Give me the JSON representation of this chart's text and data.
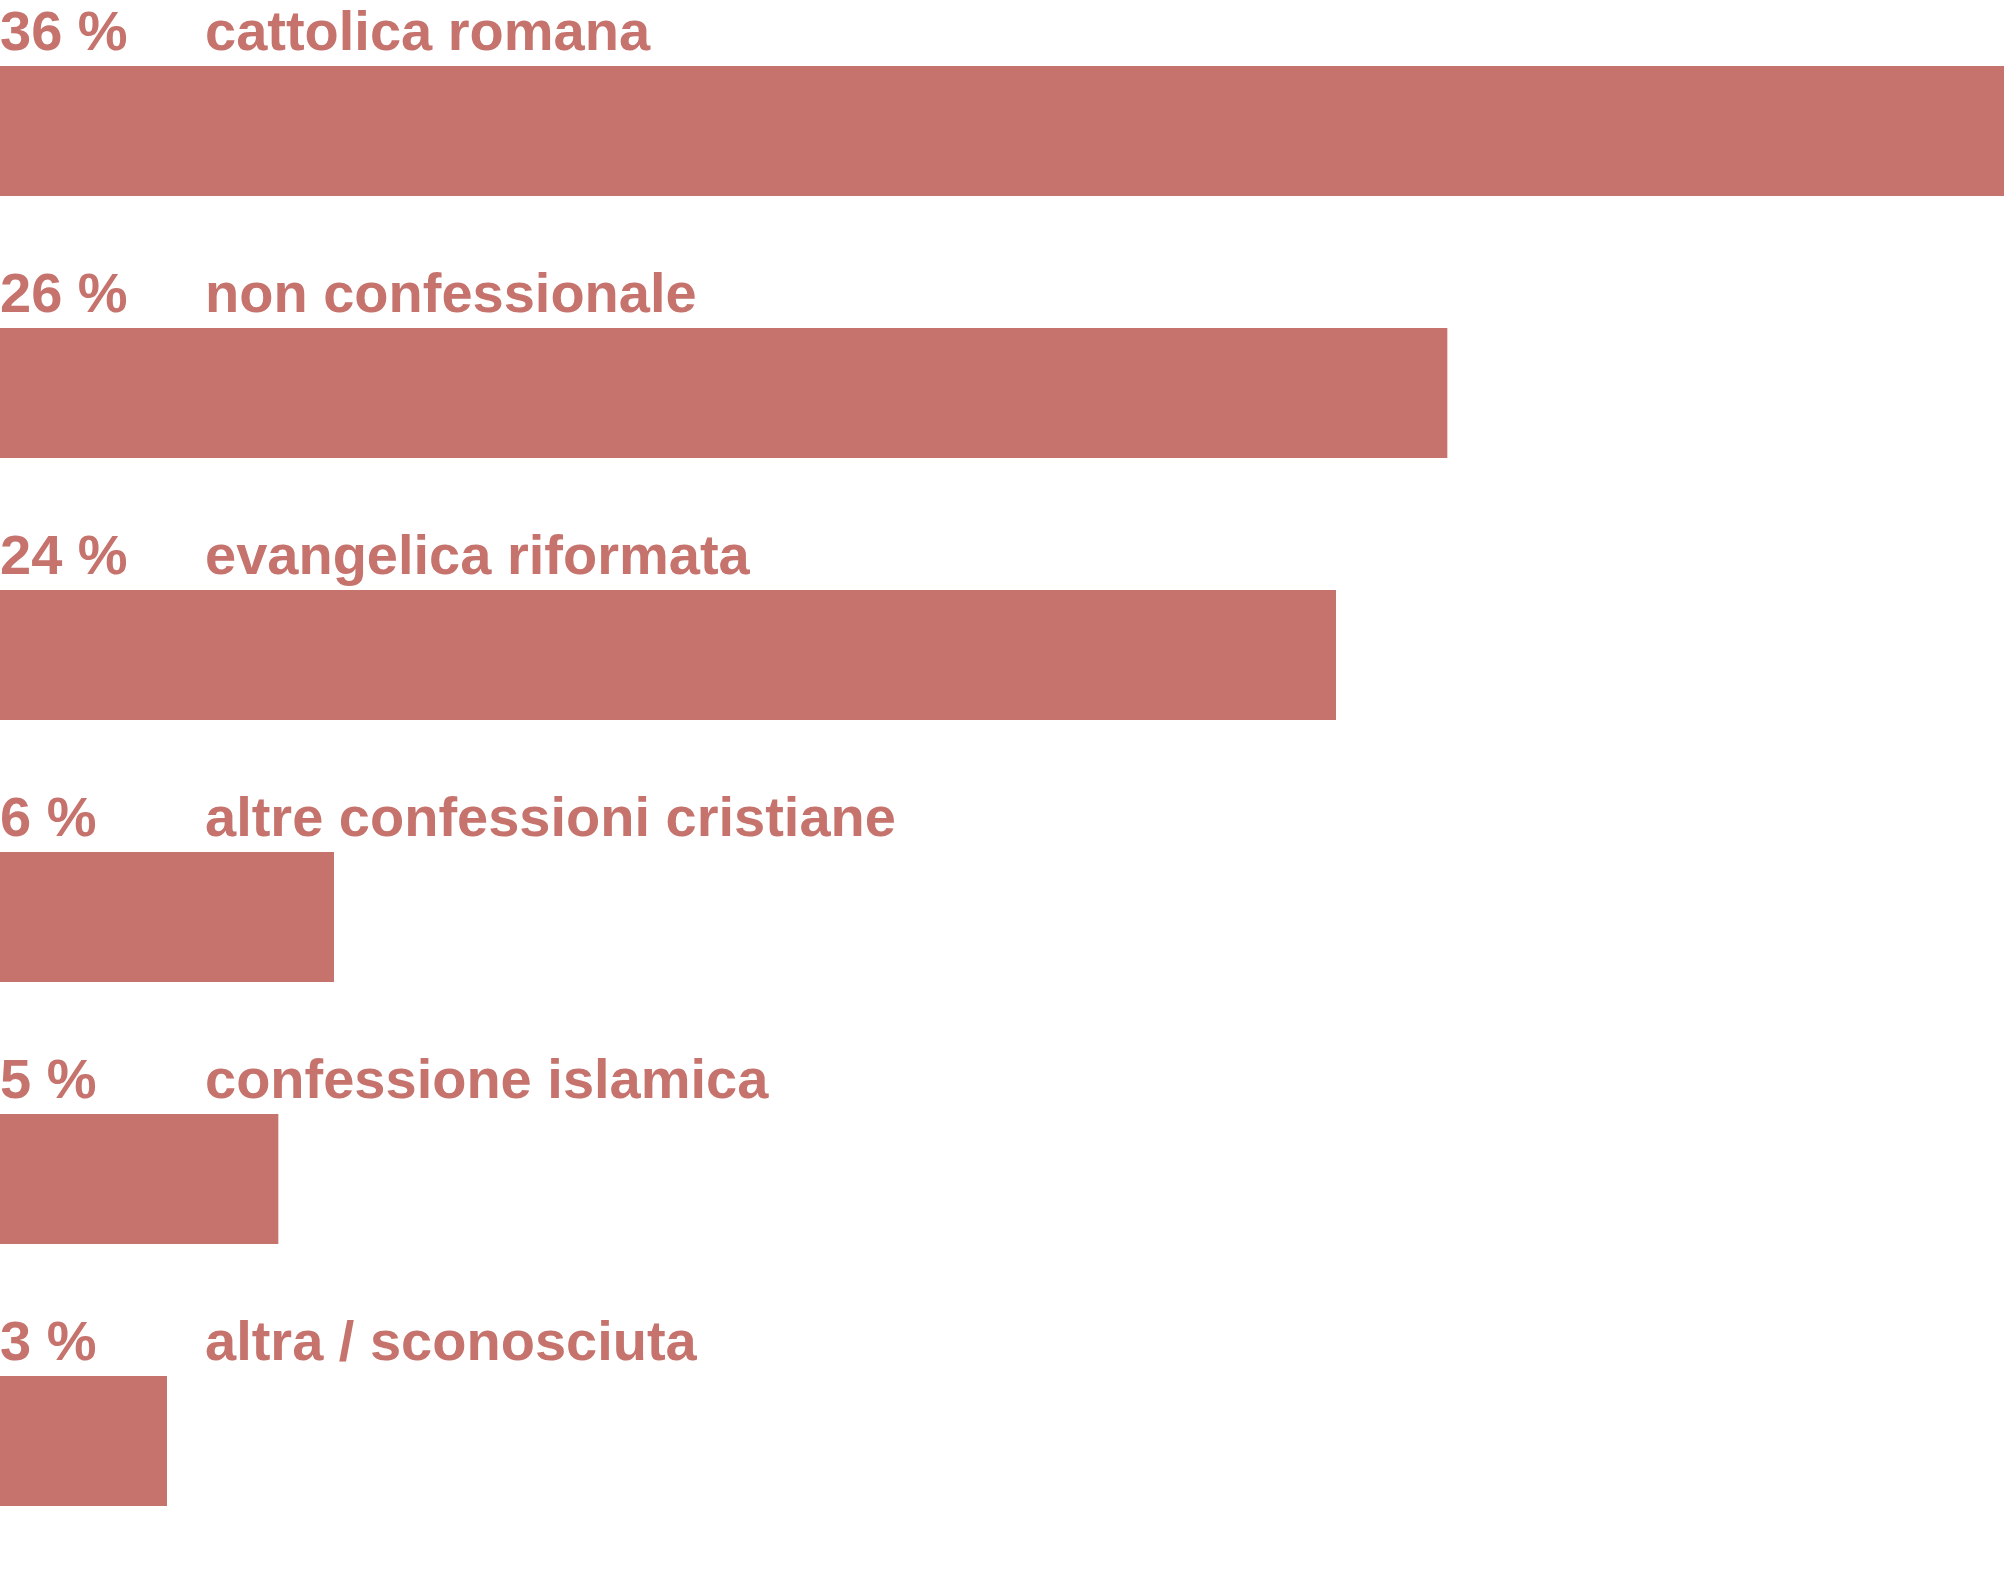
{
  "chart_data": {
    "type": "bar",
    "orientation": "horizontal",
    "categories": [
      "cattolica romana",
      "non confessionale",
      "evangelica riformata",
      "altre confessioni cristiane",
      "confessione islamica",
      "altra / sconosciuta"
    ],
    "values": [
      36,
      26,
      24,
      6,
      5,
      3
    ],
    "value_labels": [
      "36 %",
      "26 %",
      "24 %",
      "6 %",
      "5 %",
      "3 %"
    ],
    "color": "#c5736c"
  }
}
